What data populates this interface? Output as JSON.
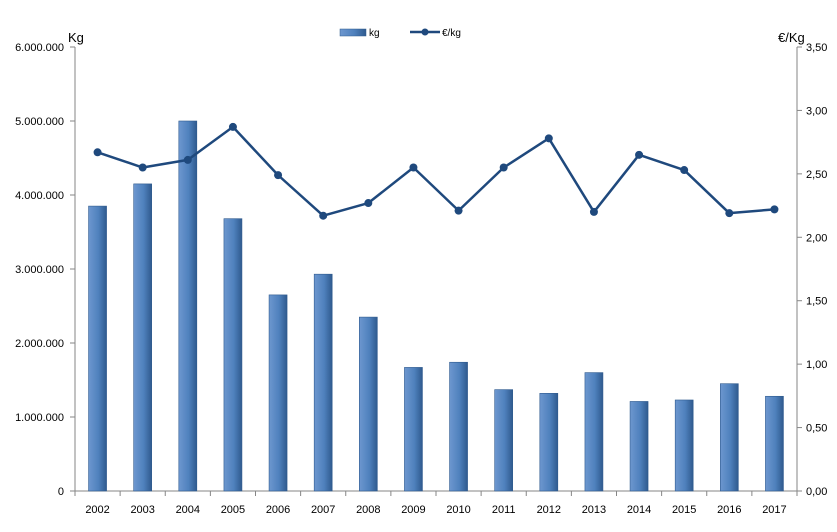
{
  "chart_data": {
    "type": "bar",
    "categories": [
      "2002",
      "2003",
      "2004",
      "2005",
      "2006",
      "2007",
      "2008",
      "2009",
      "2010",
      "2011",
      "2012",
      "2013",
      "2014",
      "2015",
      "2016",
      "2017"
    ],
    "series": [
      {
        "name": "kg",
        "type": "bar",
        "axis": "left",
        "color": "#4f81bd",
        "values": [
          3850000,
          4150000,
          5000000,
          3680000,
          2650000,
          2930000,
          2350000,
          1670000,
          1740000,
          1370000,
          1320000,
          1600000,
          1210000,
          1230000,
          1450000,
          1280000
        ]
      },
      {
        "name": "€/kg",
        "type": "line",
        "axis": "right",
        "color": "#1f497d",
        "values": [
          2.67,
          2.55,
          2.61,
          2.87,
          2.49,
          2.17,
          2.27,
          2.55,
          2.21,
          2.55,
          2.78,
          2.2,
          2.65,
          2.53,
          2.19,
          2.22
        ]
      }
    ],
    "ylabel": "Kg",
    "y2label": "€/Kg",
    "ylim": [
      0,
      6000000
    ],
    "y2lim": [
      0,
      3.5
    ],
    "yticks": [
      "0",
      "1.000.000",
      "2.000.000",
      "3.000.000",
      "4.000.000",
      "5.000.000",
      "6.000.000"
    ],
    "y2ticks": [
      "0,00",
      "0,50",
      "1,00",
      "1,50",
      "2,00",
      "2,50",
      "3,00",
      "3,50"
    ],
    "grid": false,
    "legend_position": "top-center"
  }
}
